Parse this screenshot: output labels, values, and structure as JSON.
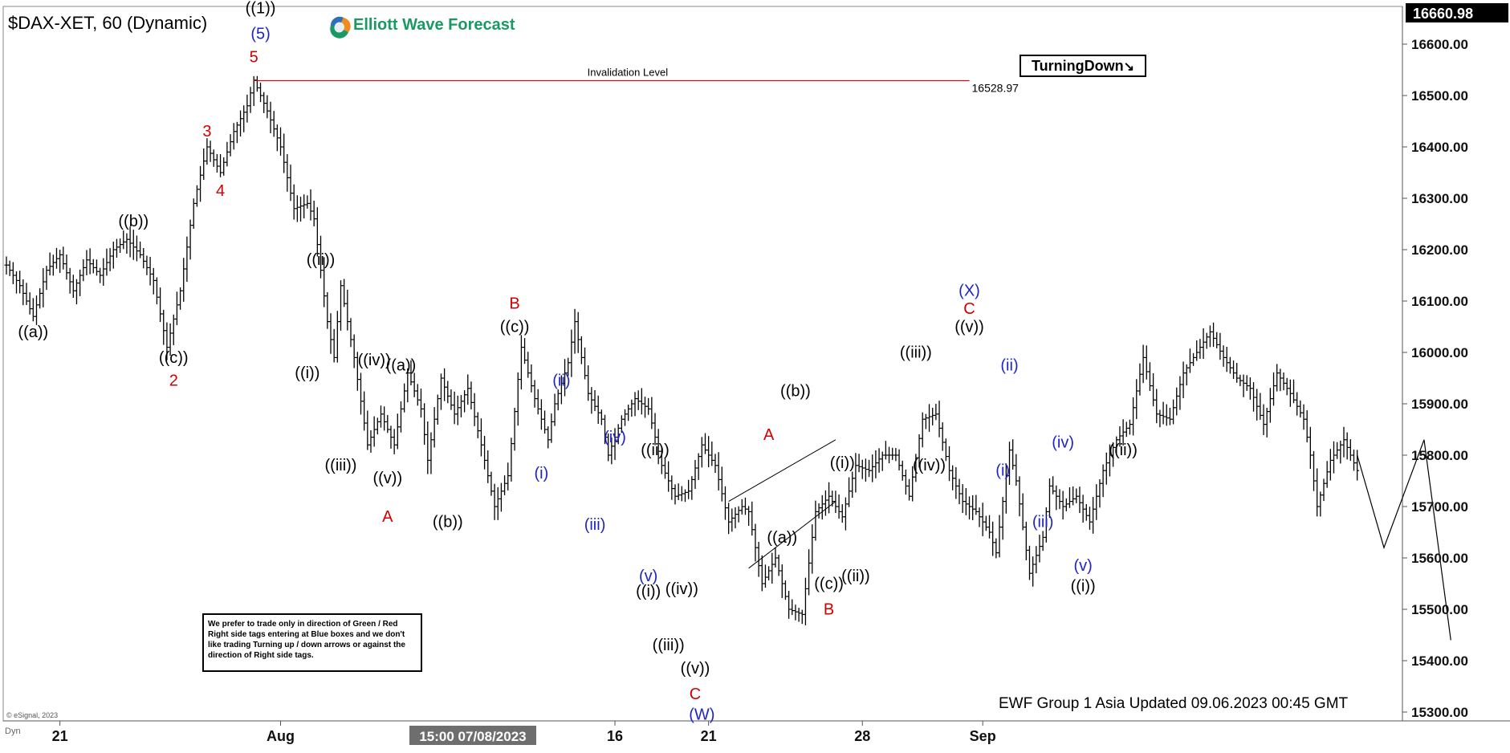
{
  "header": {
    "symbol_title": "$DAX-XET, 60 (Dynamic)",
    "logo_text": "Elliott Wave Forecast",
    "turning_label": "TurningDown"
  },
  "footer": {
    "updated_text": "EWF Group 1 Asia Updated 09.06.2023 00:45 GMT",
    "esignal_text": "© eSignal, 2023",
    "dyn_text": "Dyn"
  },
  "note": {
    "text": "We prefer to trade only in direction of Green / Red Right side tags entering at Blue boxes and we don't like trading Turning up / down arrows or against the direction of Right side tags."
  },
  "colors": {
    "black": "#000000",
    "red_label": "#d40000",
    "blue_label": "#1f24c8",
    "invalidation_line": "#e00000",
    "axis_bg": "#ffffff",
    "price_tag_bg": "#000000",
    "date_tag_bg": "#6e6e6e"
  },
  "chart_data": {
    "type": "ohlc-elliott-wave",
    "ylim": [
      15280,
      16690
    ],
    "yticks": [
      15300,
      15400,
      15500,
      15600,
      15700,
      15800,
      15900,
      16000,
      16100,
      16200,
      16300,
      16400,
      16500,
      16600
    ],
    "ytick_labels": [
      "15300.00",
      "15400.00",
      "15500.00",
      "15600.00",
      "15700.00",
      "15800.00",
      "15900.00",
      "16000.00",
      "16100.00",
      "16200.00",
      "16300.00",
      "16400.00",
      "16500.00",
      "16600.00"
    ],
    "current_price_label": "16660.98",
    "current_price": 16660.98,
    "xtick_labels": [
      {
        "label": "21",
        "bar": 8
      },
      {
        "label": "Aug",
        "bar": 41
      },
      {
        "label": "16",
        "bar": 91
      },
      {
        "label": "21",
        "bar": 105
      },
      {
        "label": "28",
        "bar": 128
      },
      {
        "label": "Sep",
        "bar": 146
      }
    ],
    "cursor_date_label": "15:00 07/08/2023",
    "invalidation": {
      "label": "Invalidation Level",
      "value": 16528.97,
      "value_label": "16528.97",
      "start_bar": 37,
      "end_bar": 144
    },
    "price_path": [
      [
        0,
        16170
      ],
      [
        2,
        16130
      ],
      [
        4,
        16070
      ],
      [
        6,
        16160
      ],
      [
        8,
        16190
      ],
      [
        10,
        16120
      ],
      [
        12,
        16180
      ],
      [
        14,
        16150
      ],
      [
        16,
        16200
      ],
      [
        18,
        16220
      ],
      [
        20,
        16190
      ],
      [
        22,
        16140
      ],
      [
        24,
        16010
      ],
      [
        26,
        16120
      ],
      [
        28,
        16290
      ],
      [
        30,
        16400
      ],
      [
        32,
        16350
      ],
      [
        34,
        16430
      ],
      [
        36,
        16480
      ],
      [
        37,
        16530
      ],
      [
        39,
        16470
      ],
      [
        41,
        16400
      ],
      [
        43,
        16280
      ],
      [
        45,
        16290
      ],
      [
        46,
        16260
      ],
      [
        48,
        16060
      ],
      [
        49,
        15990
      ],
      [
        50,
        16130
      ],
      [
        52,
        15990
      ],
      [
        54,
        15820
      ],
      [
        56,
        15880
      ],
      [
        58,
        15820
      ],
      [
        60,
        15960
      ],
      [
        62,
        15890
      ],
      [
        63,
        15790
      ],
      [
        65,
        15950
      ],
      [
        67,
        15880
      ],
      [
        69,
        15930
      ],
      [
        71,
        15820
      ],
      [
        73,
        15700
      ],
      [
        75,
        15760
      ],
      [
        77,
        16010
      ],
      [
        79,
        15910
      ],
      [
        81,
        15830
      ],
      [
        82,
        15900
      ],
      [
        84,
        15980
      ],
      [
        85,
        16060
      ],
      [
        87,
        15920
      ],
      [
        89,
        15870
      ],
      [
        90,
        15800
      ],
      [
        92,
        15870
      ],
      [
        94,
        15910
      ],
      [
        96,
        15890
      ],
      [
        98,
        15780
      ],
      [
        100,
        15720
      ],
      [
        102,
        15730
      ],
      [
        104,
        15820
      ],
      [
        106,
        15780
      ],
      [
        108,
        15670
      ],
      [
        110,
        15700
      ],
      [
        111,
        15690
      ],
      [
        113,
        15550
      ],
      [
        115,
        15600
      ],
      [
        117,
        15500
      ],
      [
        119,
        15490
      ],
      [
        121,
        15690
      ],
      [
        123,
        15720
      ],
      [
        125,
        15680
      ],
      [
        127,
        15780
      ],
      [
        129,
        15770
      ],
      [
        131,
        15800
      ],
      [
        133,
        15800
      ],
      [
        135,
        15720
      ],
      [
        137,
        15870
      ],
      [
        139,
        15880
      ],
      [
        141,
        15770
      ],
      [
        143,
        15710
      ],
      [
        144,
        15700
      ],
      [
        145,
        15690
      ],
      [
        147,
        15650
      ],
      [
        148,
        15610
      ],
      [
        150,
        15810
      ],
      [
        151,
        15750
      ],
      [
        153,
        15570
      ],
      [
        155,
        15640
      ],
      [
        156,
        15740
      ],
      [
        158,
        15700
      ],
      [
        160,
        15720
      ],
      [
        162,
        15670
      ],
      [
        164,
        15770
      ],
      [
        166,
        15830
      ],
      [
        168,
        15860
      ],
      [
        170,
        15990
      ],
      [
        172,
        15880
      ],
      [
        174,
        15870
      ],
      [
        176,
        15960
      ],
      [
        178,
        16000
      ],
      [
        180,
        16040
      ],
      [
        182,
        15990
      ],
      [
        184,
        15950
      ],
      [
        186,
        15930
      ],
      [
        188,
        15860
      ],
      [
        190,
        15960
      ],
      [
        192,
        15920
      ],
      [
        194,
        15870
      ],
      [
        195,
        15800
      ],
      [
        196,
        15700
      ],
      [
        198,
        15790
      ],
      [
        200,
        15830
      ],
      [
        202,
        15770
      ]
    ],
    "projection": [
      [
        202,
        15800
      ],
      [
        206,
        15620
      ],
      [
        212,
        15830
      ],
      [
        216,
        15440
      ]
    ],
    "triangle": {
      "upper": [
        [
          108,
          15710
        ],
        [
          124,
          15830
        ]
      ],
      "lower": [
        [
          111,
          15580
        ],
        [
          124,
          15710
        ]
      ]
    },
    "wave_labels": [
      {
        "text": "((1))",
        "bar": 38,
        "price": 16660,
        "color": "black"
      },
      {
        "text": "(5)",
        "bar": 38,
        "price": 16610,
        "color": "blue"
      },
      {
        "text": "5",
        "bar": 37,
        "price": 16565,
        "color": "red"
      },
      {
        "text": "3",
        "bar": 30,
        "price": 16420,
        "color": "red"
      },
      {
        "text": "4",
        "bar": 32,
        "price": 16305,
        "color": "red"
      },
      {
        "text": "((b))",
        "bar": 19,
        "price": 16245,
        "color": "black"
      },
      {
        "text": "((a))",
        "bar": 4,
        "price": 16030,
        "color": "black"
      },
      {
        "text": "((c))",
        "bar": 25,
        "price": 15980,
        "color": "black"
      },
      {
        "text": "2",
        "bar": 25,
        "price": 15935,
        "color": "red"
      },
      {
        "text": "((ii))",
        "bar": 47,
        "price": 16170,
        "color": "black"
      },
      {
        "text": "((i))",
        "bar": 45,
        "price": 15950,
        "color": "black"
      },
      {
        "text": "((iii))",
        "bar": 50,
        "price": 15770,
        "color": "black"
      },
      {
        "text": "((iv))",
        "bar": 55,
        "price": 15975,
        "color": "black"
      },
      {
        "text": "((a))",
        "bar": 59,
        "price": 15965,
        "color": "black"
      },
      {
        "text": "((v))",
        "bar": 57,
        "price": 15745,
        "color": "black"
      },
      {
        "text": "A",
        "bar": 57,
        "price": 15670,
        "color": "red"
      },
      {
        "text": "((b))",
        "bar": 66,
        "price": 15660,
        "color": "black"
      },
      {
        "text": "B",
        "bar": 76,
        "price": 16085,
        "color": "red"
      },
      {
        "text": "((c))",
        "bar": 76,
        "price": 16040,
        "color": "black"
      },
      {
        "text": "(ii)",
        "bar": 83,
        "price": 15935,
        "color": "blue"
      },
      {
        "text": "(i)",
        "bar": 80,
        "price": 15755,
        "color": "blue"
      },
      {
        "text": "(iii)",
        "bar": 88,
        "price": 15655,
        "color": "blue"
      },
      {
        "text": "(iv)",
        "bar": 91,
        "price": 15825,
        "color": "blue"
      },
      {
        "text": "((ii))",
        "bar": 97,
        "price": 15800,
        "color": "black"
      },
      {
        "text": "(v)",
        "bar": 96,
        "price": 15555,
        "color": "blue"
      },
      {
        "text": "((i))",
        "bar": 96,
        "price": 15525,
        "color": "black"
      },
      {
        "text": "((iv))",
        "bar": 101,
        "price": 15530,
        "color": "black"
      },
      {
        "text": "((iii))",
        "bar": 99,
        "price": 15420,
        "color": "black"
      },
      {
        "text": "((v))",
        "bar": 103,
        "price": 15375,
        "color": "black"
      },
      {
        "text": "C",
        "bar": 103,
        "price": 15325,
        "color": "red"
      },
      {
        "text": "(W)",
        "bar": 104,
        "price": 15285,
        "color": "blue"
      },
      {
        "text": "A",
        "bar": 114,
        "price": 15830,
        "color": "red"
      },
      {
        "text": "((b))",
        "bar": 118,
        "price": 15915,
        "color": "black"
      },
      {
        "text": "((a))",
        "bar": 116,
        "price": 15630,
        "color": "black"
      },
      {
        "text": "((i))",
        "bar": 125,
        "price": 15775,
        "color": "black"
      },
      {
        "text": "((c))",
        "bar": 123,
        "price": 15540,
        "color": "black"
      },
      {
        "text": "((ii))",
        "bar": 127,
        "price": 15555,
        "color": "black"
      },
      {
        "text": "B",
        "bar": 123,
        "price": 15490,
        "color": "red"
      },
      {
        "text": "((iii))",
        "bar": 136,
        "price": 15990,
        "color": "black"
      },
      {
        "text": "((iv))",
        "bar": 138,
        "price": 15770,
        "color": "black"
      },
      {
        "text": "(X)",
        "bar": 144,
        "price": 16110,
        "color": "blue"
      },
      {
        "text": "C",
        "bar": 144,
        "price": 16075,
        "color": "red"
      },
      {
        "text": "((v))",
        "bar": 144,
        "price": 16040,
        "color": "black"
      },
      {
        "text": "(ii)",
        "bar": 150,
        "price": 15965,
        "color": "blue"
      },
      {
        "text": "(i)",
        "bar": 149,
        "price": 15760,
        "color": "blue"
      },
      {
        "text": "(iv)",
        "bar": 158,
        "price": 15815,
        "color": "blue"
      },
      {
        "text": "(iii)",
        "bar": 155,
        "price": 15660,
        "color": "blue"
      },
      {
        "text": "((ii))",
        "bar": 167,
        "price": 15800,
        "color": "black"
      },
      {
        "text": "(v)",
        "bar": 161,
        "price": 15575,
        "color": "blue"
      },
      {
        "text": "((i))",
        "bar": 161,
        "price": 15535,
        "color": "black"
      }
    ]
  }
}
